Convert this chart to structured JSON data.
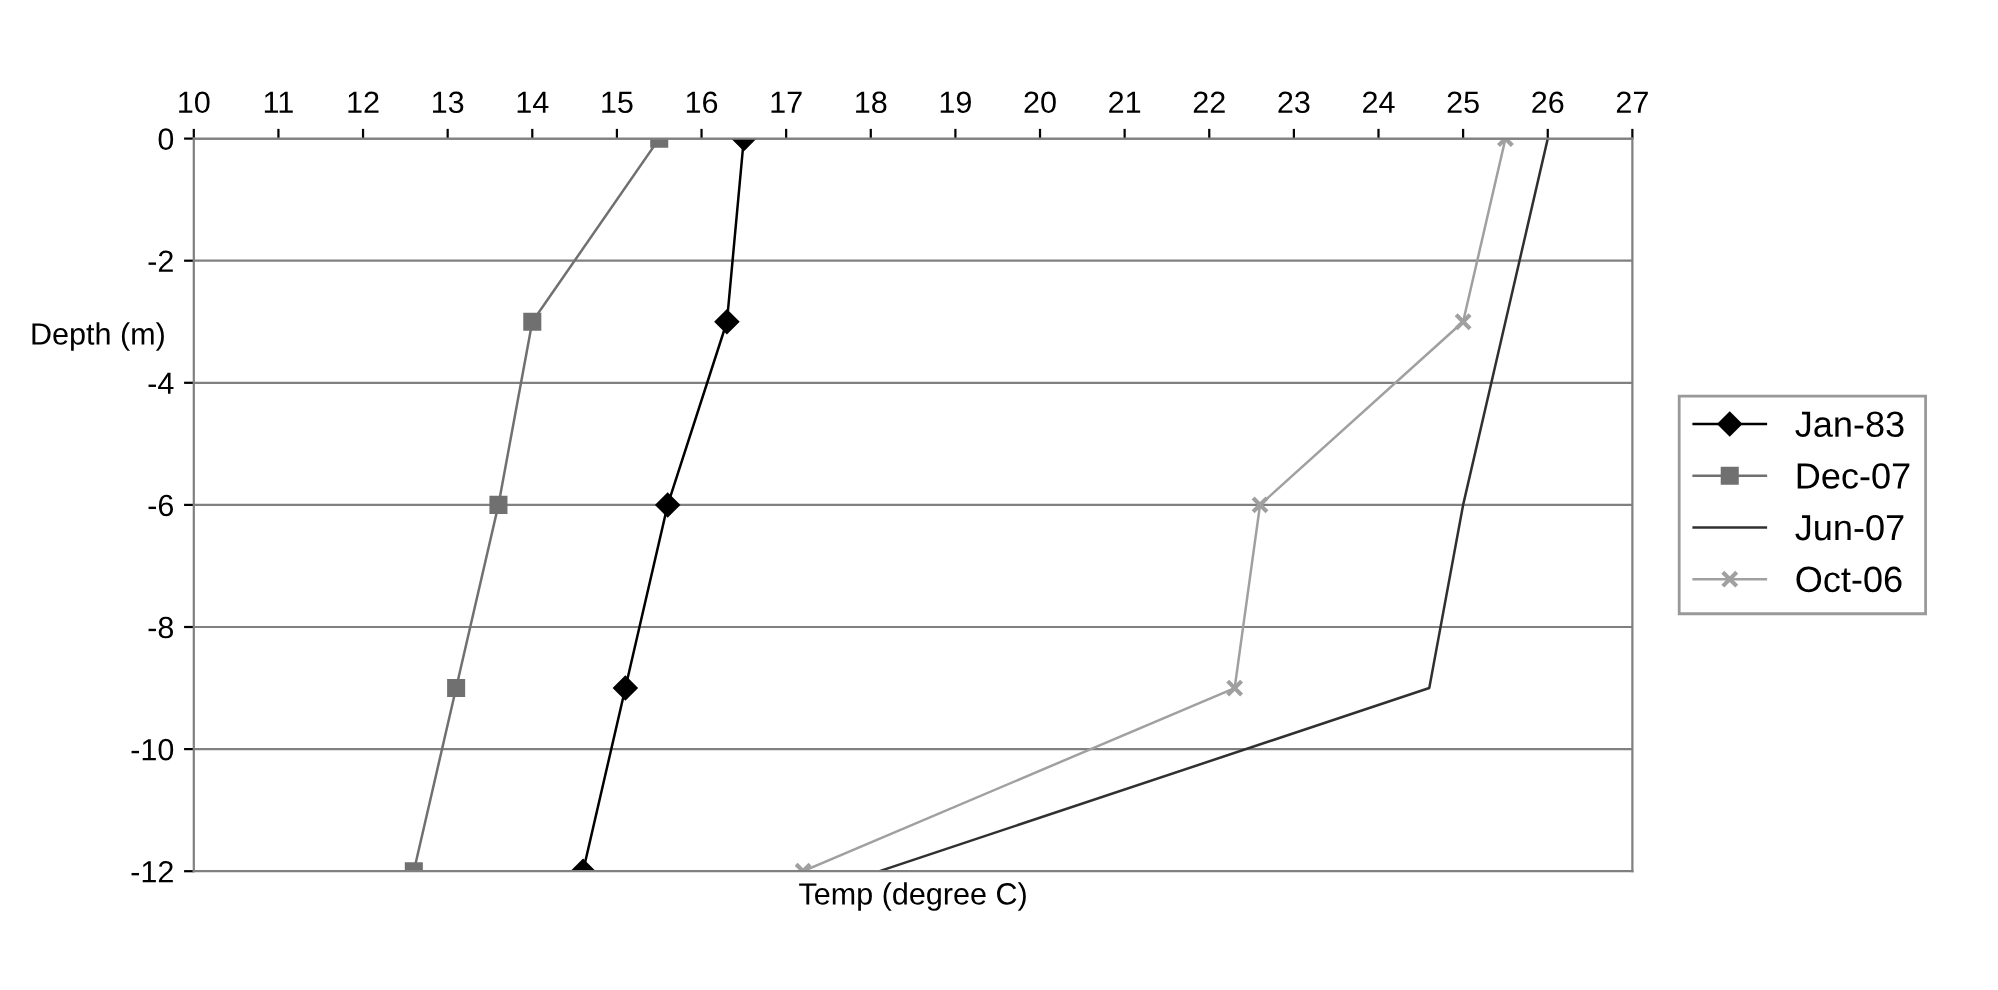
{
  "chart_data": {
    "type": "line",
    "xlabel": "Temp (degree C)",
    "ylabel": "Depth (m)",
    "xlim": [
      10,
      27
    ],
    "xticks": [
      10,
      11,
      12,
      13,
      14,
      15,
      16,
      17,
      18,
      19,
      20,
      21,
      22,
      23,
      24,
      25,
      26,
      27
    ],
    "ylim": [
      -12,
      0
    ],
    "yticks": [
      -12,
      -10,
      -8,
      -6,
      -4,
      -2,
      0
    ],
    "grid": "y",
    "legend": "right",
    "series": [
      {
        "name": "Jan-83",
        "color": "#000000",
        "marker": "diamond",
        "x": [
          16.5,
          16.3,
          15.6,
          15.1,
          14.6
        ],
        "values": [
          0,
          -3,
          -6,
          -9,
          -12
        ]
      },
      {
        "name": "Dec-07",
        "color": "#707070",
        "marker": "square",
        "x": [
          15.5,
          14.0,
          13.6,
          13.1,
          12.6
        ],
        "values": [
          0,
          -3,
          -6,
          -9,
          -12
        ]
      },
      {
        "name": "Jun-07",
        "color": "#303030",
        "marker": "none",
        "x": [
          26.0,
          25.5,
          25.0,
          24.6,
          18.1
        ],
        "values": [
          0,
          -3,
          -6,
          -9,
          -12
        ]
      },
      {
        "name": "Oct-06",
        "color": "#a0a0a0",
        "marker": "cross",
        "x": [
          25.5,
          25.0,
          22.6,
          22.3,
          17.2
        ],
        "values": [
          0,
          -3,
          -6,
          -9,
          -12
        ]
      }
    ]
  }
}
